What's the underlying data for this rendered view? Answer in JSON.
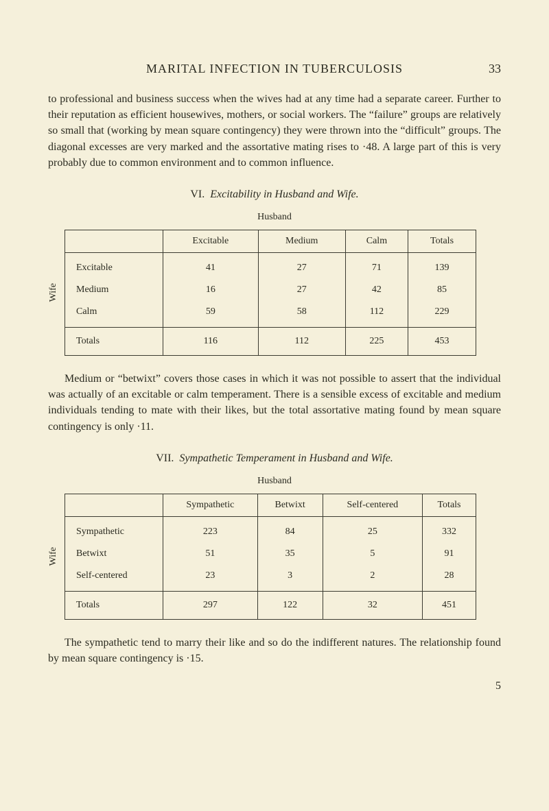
{
  "header": {
    "title": "MARITAL INFECTION IN TUBERCULOSIS",
    "page_number": "33"
  },
  "para1": "to professional and business success when the wives had at any time had a separate career. Further to their reputation as efficient housewives, mothers, or social workers. The “failure” groups are relatively so small that (working by mean square contingency) they were thrown into the “difficult” groups. The diagonal excesses are very marked and the assortative mating rises to ·48. A large part of this is very probably due to common environment and to common influence.",
  "section6": {
    "roman": "VI.",
    "title": "Excitability in Husband and Wife.",
    "husband_label": "Husband",
    "wife_label": "Wife",
    "columns": [
      "",
      "Excitable",
      "Medium",
      "Calm",
      "Totals"
    ],
    "rows": [
      [
        "Excitable",
        "41",
        "27",
        "71",
        "139"
      ],
      [
        "Medium",
        "16",
        "27",
        "42",
        "85"
      ],
      [
        "Calm",
        "59",
        "58",
        "112",
        "229"
      ]
    ],
    "totals": [
      "Totals",
      "116",
      "112",
      "225",
      "453"
    ]
  },
  "para2": "Medium or “betwixt” covers those cases in which it was not possible to assert that the individual was actually of an excitable or calm temperament. There is a sensible excess of excitable and medium individuals tending to mate with their likes, but the total assortative mating found by mean square contingency is only ·11.",
  "section7": {
    "roman": "VII.",
    "title": "Sympathetic Temperament in Husband and Wife.",
    "husband_label": "Husband",
    "wife_label": "Wife",
    "columns": [
      "",
      "Sympathetic",
      "Betwixt",
      "Self-centered",
      "Totals"
    ],
    "rows": [
      [
        "Sympathetic",
        "223",
        "84",
        "25",
        "332"
      ],
      [
        "Betwixt",
        "51",
        "35",
        "5",
        "91"
      ],
      [
        "Self-centered",
        "23",
        "3",
        "2",
        "28"
      ]
    ],
    "totals": [
      "Totals",
      "297",
      "122",
      "32",
      "451"
    ]
  },
  "para3": "The sympathetic tend to marry their like and so do the indifferent natures. The relationship found by mean square contingency is ·15.",
  "footer_number": "5"
}
